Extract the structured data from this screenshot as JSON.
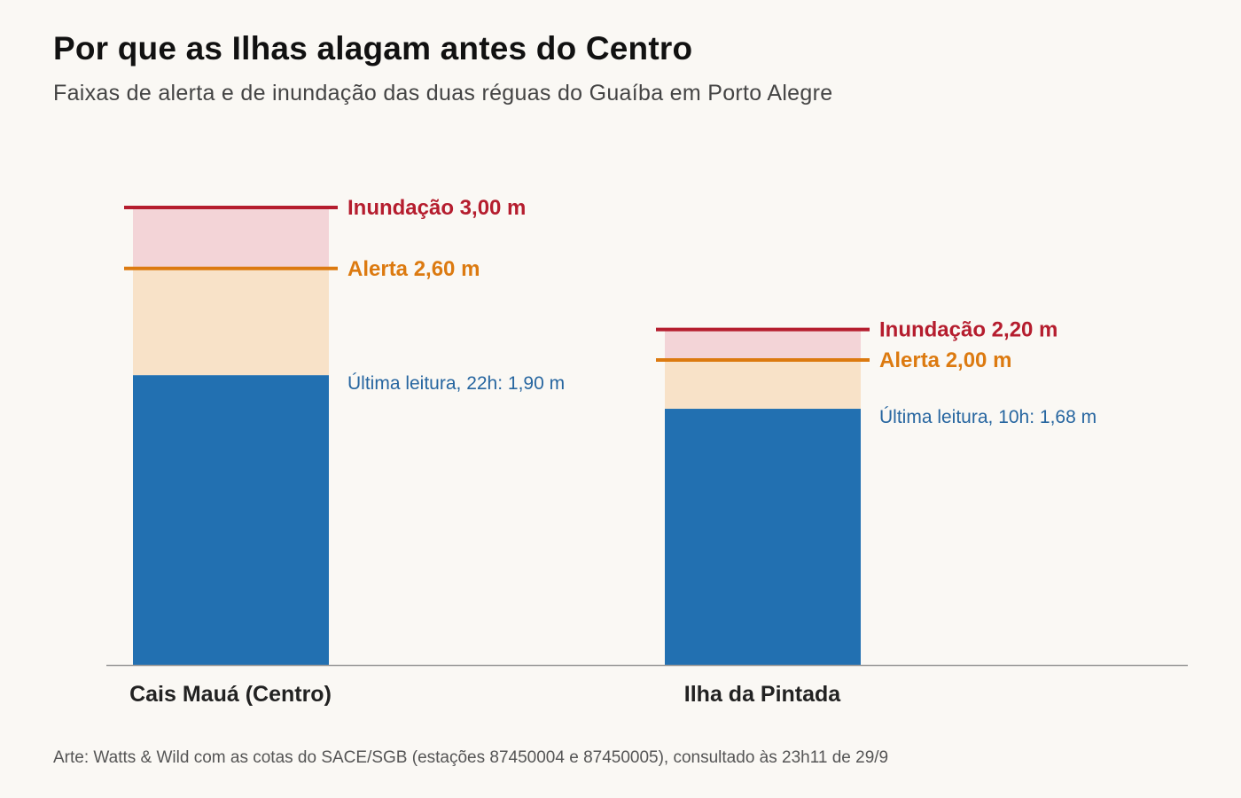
{
  "header": {
    "title": "Por que as Ilhas alagam antes do Centro",
    "subtitle": "Faixas de alerta e de inundação das duas réguas do Guaíba em Porto Alegre"
  },
  "footer": {
    "source": "Arte: Watts & Wild com as cotas do SACE/SGB (estações 87450004 e 87450005), consultado às 23h11 de 29/9"
  },
  "colors": {
    "level": "#2270b1",
    "alert_band": "#f8e2c8",
    "flood_band": "#f3d4d7",
    "alert_line": "#dc7a10",
    "flood_line": "#b51d2e",
    "reading_text": "#2766a0",
    "axis": "#999999"
  },
  "chart_data": {
    "type": "bar",
    "ylim": [
      0,
      3.3
    ],
    "categories": [
      "Cais Mauá (Centro)",
      "Ilha da Pintada"
    ],
    "stations": [
      {
        "name": "Cais Mauá (Centro)",
        "reading": 1.9,
        "alert": 2.6,
        "flood": 3.0,
        "flood_label": "Inundação 3,00 m",
        "alert_label": "Alerta 2,60 m",
        "reading_label": "Última leitura, 22h: 1,90 m"
      },
      {
        "name": "Ilha da Pintada",
        "reading": 1.68,
        "alert": 2.0,
        "flood": 2.2,
        "flood_label": "Inundação 2,20 m",
        "alert_label": "Alerta 2,00 m",
        "reading_label": "Última leitura, 10h: 1,68 m"
      }
    ]
  }
}
